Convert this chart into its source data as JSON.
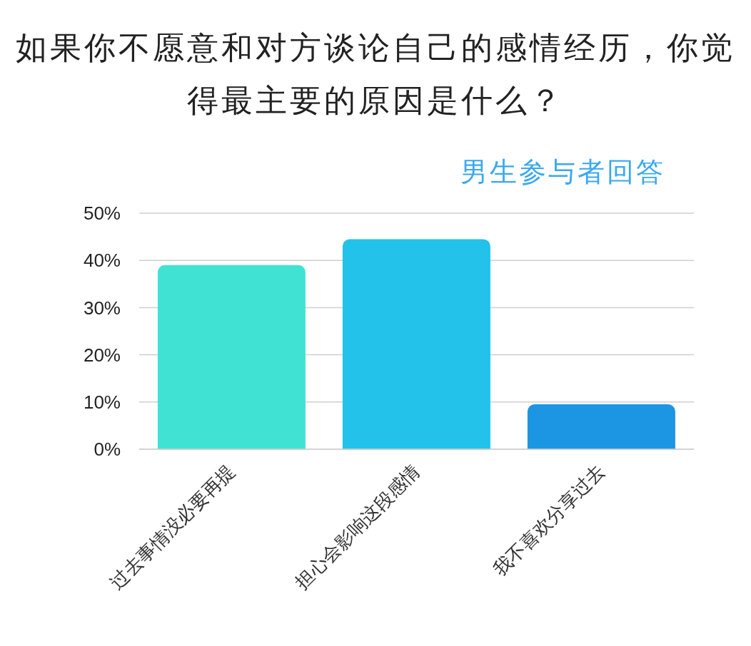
{
  "chart_data": {
    "type": "bar",
    "title": "如果你不愿意和对方谈论自己的感情经历，你觉得最主要的原因是什么？",
    "subtitle": "男生参与者回答",
    "categories": [
      "过去事情没必要再提",
      "担心会影响这段感情",
      "我不喜欢分享过去"
    ],
    "values": [
      39,
      44.5,
      9.5
    ],
    "colors": [
      "#40e3d3",
      "#22c2ea",
      "#1c96e3"
    ],
    "ylim": [
      0,
      50
    ],
    "yticks": [
      {
        "value": 0,
        "label": "0%"
      },
      {
        "value": 10,
        "label": "10%"
      },
      {
        "value": 20,
        "label": "20%"
      },
      {
        "value": 30,
        "label": "30%"
      },
      {
        "value": 40,
        "label": "40%"
      },
      {
        "value": 50,
        "label": "50%"
      }
    ],
    "grid": "y"
  }
}
